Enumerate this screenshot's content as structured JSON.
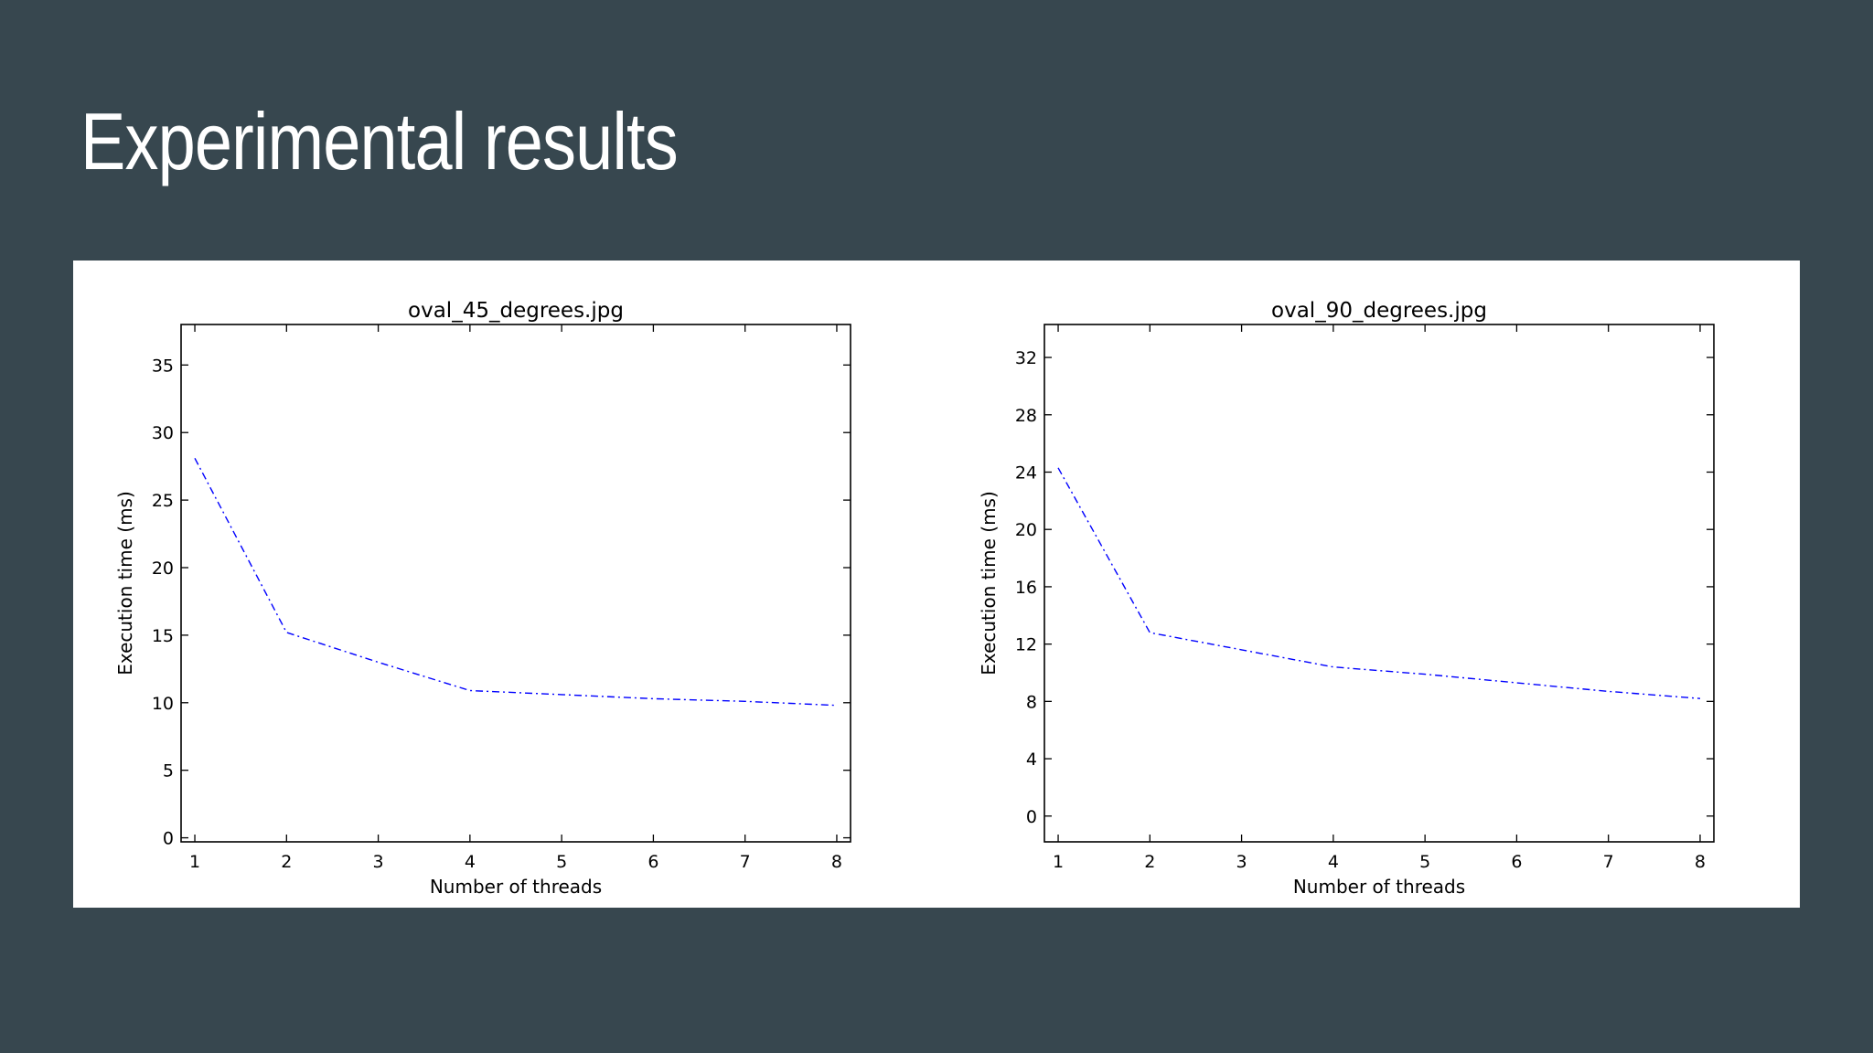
{
  "slide": {
    "title": "Experimental results"
  },
  "colors": {
    "background": "#37474f",
    "panel": "#ffffff",
    "series": "#0000ff"
  },
  "chart_data": [
    {
      "type": "line",
      "title": "oval_45_degrees.jpg",
      "xlabel": "Number of threads",
      "ylabel": "Execution time (ms)",
      "xlim": [
        0.85,
        8.15
      ],
      "ylim": [
        -0.3,
        38
      ],
      "xticks": [
        1,
        2,
        3,
        4,
        5,
        6,
        7,
        8
      ],
      "yticks": [
        0,
        5,
        10,
        15,
        20,
        25,
        30,
        35
      ],
      "line_style": "dash-dot",
      "grid": false,
      "series": [
        {
          "x": [
            1,
            2,
            3,
            4,
            5,
            6,
            7,
            8
          ],
          "y": [
            28.1,
            15.2,
            13.0,
            10.9,
            10.6,
            10.3,
            10.1,
            9.8
          ]
        }
      ]
    },
    {
      "type": "line",
      "title": "oval_90_degrees.jpg",
      "xlabel": "Number of threads",
      "ylabel": "Execution time (ms)",
      "xlim": [
        0.85,
        8.15
      ],
      "ylim": [
        -1.8,
        34.3
      ],
      "xticks": [
        1,
        2,
        3,
        4,
        5,
        6,
        7,
        8
      ],
      "yticks": [
        0,
        4,
        8,
        12,
        16,
        20,
        24,
        28,
        32
      ],
      "line_style": "dash-dot",
      "grid": false,
      "series": [
        {
          "x": [
            1,
            2,
            3,
            4,
            5,
            6,
            7,
            8
          ],
          "y": [
            24.3,
            12.8,
            11.6,
            10.4,
            9.9,
            9.3,
            8.7,
            8.2
          ]
        }
      ]
    }
  ]
}
